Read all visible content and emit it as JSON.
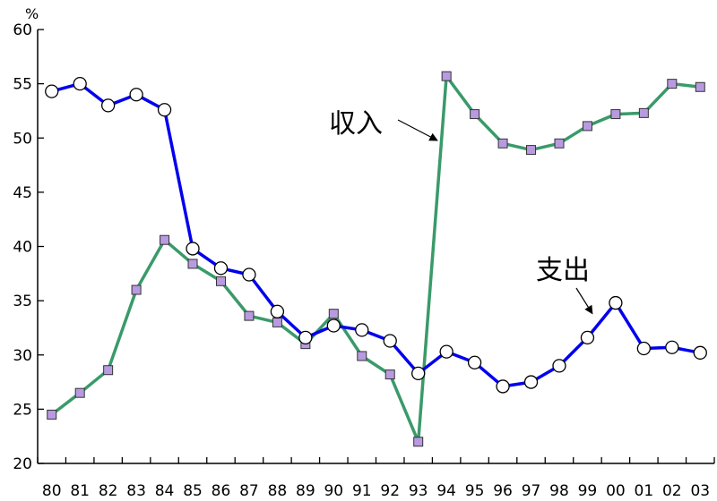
{
  "chart_data": {
    "type": "line",
    "title": "",
    "xlabel": "",
    "ylabel": "",
    "y_unit": "%",
    "ylim": [
      20,
      60
    ],
    "yticks": [
      20,
      25,
      30,
      35,
      40,
      45,
      50,
      55,
      60
    ],
    "grid": false,
    "categories": [
      "80",
      "81",
      "82",
      "83",
      "84",
      "85",
      "86",
      "87",
      "88",
      "89",
      "90",
      "91",
      "92",
      "93",
      "94",
      "95",
      "96",
      "97",
      "98",
      "99",
      "00",
      "01",
      "02",
      "03"
    ],
    "series": [
      {
        "name": "収入",
        "color": "#3a9a6a",
        "marker": "square",
        "marker_color": "#b89ae0",
        "values": [
          24.5,
          26.5,
          28.6,
          36.0,
          40.6,
          38.4,
          36.8,
          33.6,
          33.0,
          31.0,
          33.8,
          29.9,
          28.2,
          22.0,
          55.7,
          52.2,
          49.5,
          48.9,
          49.5,
          51.1,
          52.2,
          52.3,
          55.0,
          54.7
        ]
      },
      {
        "name": "支出",
        "color": "#0000ee",
        "marker": "circle",
        "marker_color": "#ffffff",
        "values": [
          54.3,
          55.0,
          53.0,
          54.0,
          52.6,
          39.8,
          38.0,
          37.4,
          34.0,
          31.6,
          32.7,
          32.3,
          31.3,
          28.3,
          30.3,
          29.3,
          27.1,
          27.5,
          29.0,
          31.6,
          34.8,
          30.6,
          30.7,
          30.2
        ]
      }
    ],
    "annotations": [
      {
        "text": "収入",
        "series": "収入",
        "category": "93"
      },
      {
        "text": "支出",
        "series": "支出",
        "category": "00"
      }
    ]
  }
}
